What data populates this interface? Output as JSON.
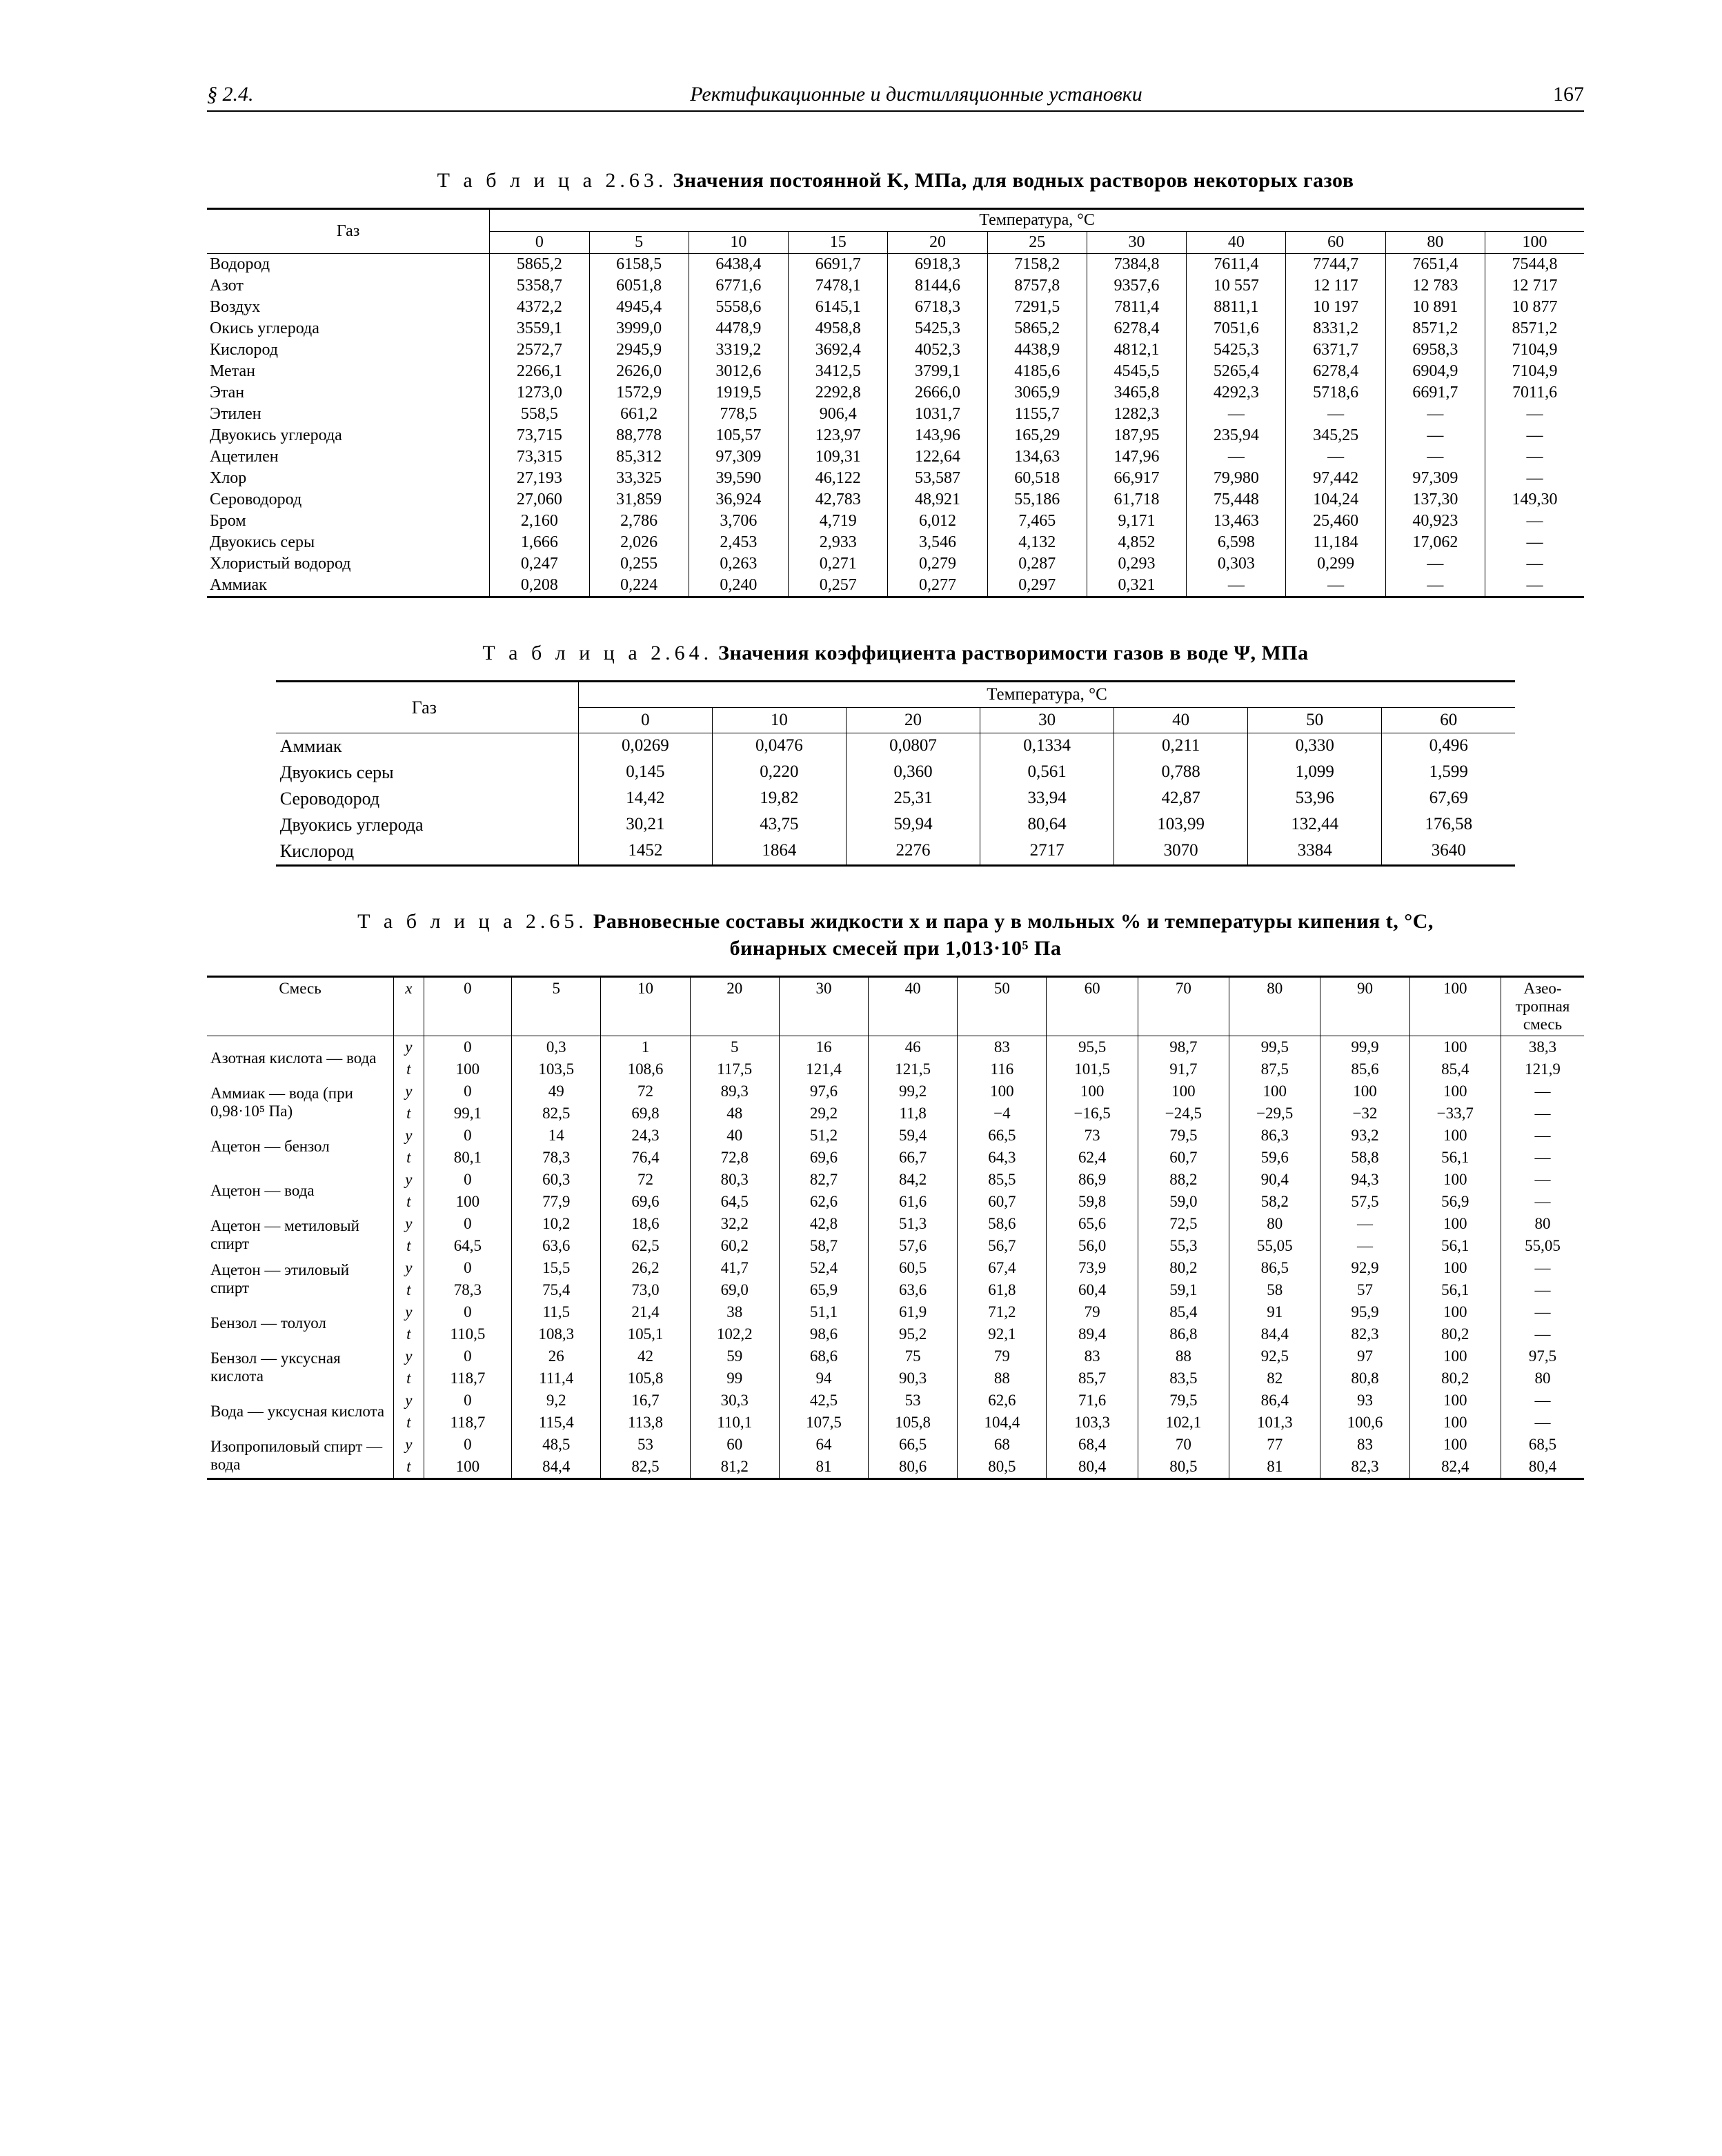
{
  "header": {
    "section": "§ 2.4.",
    "title": "Ректификационные и дистилляционные установки",
    "page": "167"
  },
  "table63": {
    "caption_lead": "Т а б л и ц а 2.63.",
    "caption_rest": " Значения постоянной K, МПа, для водных растворов некоторых газов",
    "rowheader": "Газ",
    "group_header": "Температура, °C",
    "temps": [
      "0",
      "5",
      "10",
      "15",
      "20",
      "25",
      "30",
      "40",
      "60",
      "80",
      "100"
    ],
    "rows": [
      {
        "name": "Водород",
        "v": [
          "5865,2",
          "6158,5",
          "6438,4",
          "6691,7",
          "6918,3",
          "7158,2",
          "7384,8",
          "7611,4",
          "7744,7",
          "7651,4",
          "7544,8"
        ]
      },
      {
        "name": "Азот",
        "v": [
          "5358,7",
          "6051,8",
          "6771,6",
          "7478,1",
          "8144,6",
          "8757,8",
          "9357,6",
          "10 557",
          "12 117",
          "12 783",
          "12 717"
        ]
      },
      {
        "name": "Воздух",
        "v": [
          "4372,2",
          "4945,4",
          "5558,6",
          "6145,1",
          "6718,3",
          "7291,5",
          "7811,4",
          "8811,1",
          "10 197",
          "10 891",
          "10 877"
        ]
      },
      {
        "name": "Окись углерода",
        "v": [
          "3559,1",
          "3999,0",
          "4478,9",
          "4958,8",
          "5425,3",
          "5865,2",
          "6278,4",
          "7051,6",
          "8331,2",
          "8571,2",
          "8571,2"
        ]
      },
      {
        "name": "Кислород",
        "v": [
          "2572,7",
          "2945,9",
          "3319,2",
          "3692,4",
          "4052,3",
          "4438,9",
          "4812,1",
          "5425,3",
          "6371,7",
          "6958,3",
          "7104,9"
        ]
      },
      {
        "name": "Метан",
        "v": [
          "2266,1",
          "2626,0",
          "3012,6",
          "3412,5",
          "3799,1",
          "4185,6",
          "4545,5",
          "5265,4",
          "6278,4",
          "6904,9",
          "7104,9"
        ]
      },
      {
        "name": "Этан",
        "v": [
          "1273,0",
          "1572,9",
          "1919,5",
          "2292,8",
          "2666,0",
          "3065,9",
          "3465,8",
          "4292,3",
          "5718,6",
          "6691,7",
          "7011,6"
        ]
      },
      {
        "name": "Этилен",
        "v": [
          "558,5",
          "661,2",
          "778,5",
          "906,4",
          "1031,7",
          "1155,7",
          "1282,3",
          "—",
          "—",
          "—",
          "—"
        ]
      },
      {
        "name": "Двуокись углерода",
        "v": [
          "73,715",
          "88,778",
          "105,57",
          "123,97",
          "143,96",
          "165,29",
          "187,95",
          "235,94",
          "345,25",
          "—",
          "—"
        ]
      },
      {
        "name": "Ацетилен",
        "v": [
          "73,315",
          "85,312",
          "97,309",
          "109,31",
          "122,64",
          "134,63",
          "147,96",
          "—",
          "—",
          "—",
          "—"
        ]
      },
      {
        "name": "Хлор",
        "v": [
          "27,193",
          "33,325",
          "39,590",
          "46,122",
          "53,587",
          "60,518",
          "66,917",
          "79,980",
          "97,442",
          "97,309",
          "—"
        ]
      },
      {
        "name": "Сероводород",
        "v": [
          "27,060",
          "31,859",
          "36,924",
          "42,783",
          "48,921",
          "55,186",
          "61,718",
          "75,448",
          "104,24",
          "137,30",
          "149,30"
        ]
      },
      {
        "name": "Бром",
        "v": [
          "2,160",
          "2,786",
          "3,706",
          "4,719",
          "6,012",
          "7,465",
          "9,171",
          "13,463",
          "25,460",
          "40,923",
          "—"
        ]
      },
      {
        "name": "Двуокись серы",
        "v": [
          "1,666",
          "2,026",
          "2,453",
          "2,933",
          "3,546",
          "4,132",
          "4,852",
          "6,598",
          "11,184",
          "17,062",
          "—"
        ]
      },
      {
        "name": "Хлористый водород",
        "v": [
          "0,247",
          "0,255",
          "0,263",
          "0,271",
          "0,279",
          "0,287",
          "0,293",
          "0,303",
          "0,299",
          "—",
          "—"
        ]
      },
      {
        "name": "Аммиак",
        "v": [
          "0,208",
          "0,224",
          "0,240",
          "0,257",
          "0,277",
          "0,297",
          "0,321",
          "—",
          "—",
          "—",
          "—"
        ]
      }
    ]
  },
  "table64": {
    "caption_lead": "Т а б л и ц а 2.64.",
    "caption_rest": " Значения коэффициента растворимости газов в воде Ψ, МПа",
    "rowheader": "Газ",
    "group_header": "Температура, °C",
    "temps": [
      "0",
      "10",
      "20",
      "30",
      "40",
      "50",
      "60"
    ],
    "rows": [
      {
        "name": "Аммиак",
        "v": [
          "0,0269",
          "0,0476",
          "0,0807",
          "0,1334",
          "0,211",
          "0,330",
          "0,496"
        ]
      },
      {
        "name": "Двуокись серы",
        "v": [
          "0,145",
          "0,220",
          "0,360",
          "0,561",
          "0,788",
          "1,099",
          "1,599"
        ]
      },
      {
        "name": "Сероводород",
        "v": [
          "14,42",
          "19,82",
          "25,31",
          "33,94",
          "42,87",
          "53,96",
          "67,69"
        ]
      },
      {
        "name": "Двуокись углерода",
        "v": [
          "30,21",
          "43,75",
          "59,94",
          "80,64",
          "103,99",
          "132,44",
          "176,58"
        ]
      },
      {
        "name": "Кислород",
        "v": [
          "1452",
          "1864",
          "2276",
          "2717",
          "3070",
          "3384",
          "3640"
        ]
      }
    ]
  },
  "table65": {
    "caption_lead": "Т а б л и ц а 2.65.",
    "caption_rest": " Равновесные составы жидкости x и пара y в мольных % и температуры кипения t, °C, бинарных смесей при 1,013·10⁵ Па",
    "rowheader": "Смесь",
    "xcol": "x",
    "xvals": [
      "0",
      "5",
      "10",
      "20",
      "30",
      "40",
      "50",
      "60",
      "70",
      "80",
      "90",
      "100"
    ],
    "azeo": "Азео-тропная смесь",
    "rows": [
      {
        "name": "Азотная кислота — вода",
        "y": [
          "0",
          "0,3",
          "1",
          "5",
          "16",
          "46",
          "83",
          "95,5",
          "98,7",
          "99,5",
          "99,9",
          "100",
          "38,3"
        ],
        "t": [
          "100",
          "103,5",
          "108,6",
          "117,5",
          "121,4",
          "121,5",
          "116",
          "101,5",
          "91,7",
          "87,5",
          "85,6",
          "85,4",
          "121,9"
        ]
      },
      {
        "name": "Аммиак — вода (при 0,98·10⁵ Па)",
        "y": [
          "0",
          "49",
          "72",
          "89,3",
          "97,6",
          "99,2",
          "100",
          "100",
          "100",
          "100",
          "100",
          "100",
          "—"
        ],
        "t": [
          "99,1",
          "82,5",
          "69,8",
          "48",
          "29,2",
          "11,8",
          "−4",
          "−16,5",
          "−24,5",
          "−29,5",
          "−32",
          "−33,7",
          "—"
        ]
      },
      {
        "name": "Ацетон — бензол",
        "y": [
          "0",
          "14",
          "24,3",
          "40",
          "51,2",
          "59,4",
          "66,5",
          "73",
          "79,5",
          "86,3",
          "93,2",
          "100",
          "—"
        ],
        "t": [
          "80,1",
          "78,3",
          "76,4",
          "72,8",
          "69,6",
          "66,7",
          "64,3",
          "62,4",
          "60,7",
          "59,6",
          "58,8",
          "56,1",
          "—"
        ]
      },
      {
        "name": "Ацетон — вода",
        "y": [
          "0",
          "60,3",
          "72",
          "80,3",
          "82,7",
          "84,2",
          "85,5",
          "86,9",
          "88,2",
          "90,4",
          "94,3",
          "100",
          "—"
        ],
        "t": [
          "100",
          "77,9",
          "69,6",
          "64,5",
          "62,6",
          "61,6",
          "60,7",
          "59,8",
          "59,0",
          "58,2",
          "57,5",
          "56,9",
          "—"
        ]
      },
      {
        "name": "Ацетон — метиловый спирт",
        "y": [
          "0",
          "10,2",
          "18,6",
          "32,2",
          "42,8",
          "51,3",
          "58,6",
          "65,6",
          "72,5",
          "80",
          "—",
          "100",
          "80"
        ],
        "t": [
          "64,5",
          "63,6",
          "62,5",
          "60,2",
          "58,7",
          "57,6",
          "56,7",
          "56,0",
          "55,3",
          "55,05",
          "—",
          "56,1",
          "55,05"
        ]
      },
      {
        "name": "Ацетон — этиловый спирт",
        "y": [
          "0",
          "15,5",
          "26,2",
          "41,7",
          "52,4",
          "60,5",
          "67,4",
          "73,9",
          "80,2",
          "86,5",
          "92,9",
          "100",
          "—"
        ],
        "t": [
          "78,3",
          "75,4",
          "73,0",
          "69,0",
          "65,9",
          "63,6",
          "61,8",
          "60,4",
          "59,1",
          "58",
          "57",
          "56,1",
          "—"
        ]
      },
      {
        "name": "Бензол — толуол",
        "y": [
          "0",
          "11,5",
          "21,4",
          "38",
          "51,1",
          "61,9",
          "71,2",
          "79",
          "85,4",
          "91",
          "95,9",
          "100",
          "—"
        ],
        "t": [
          "110,5",
          "108,3",
          "105,1",
          "102,2",
          "98,6",
          "95,2",
          "92,1",
          "89,4",
          "86,8",
          "84,4",
          "82,3",
          "80,2",
          "—"
        ]
      },
      {
        "name": "Бензол — уксусная кислота",
        "y": [
          "0",
          "26",
          "42",
          "59",
          "68,6",
          "75",
          "79",
          "83",
          "88",
          "92,5",
          "97",
          "100",
          "97,5"
        ],
        "t": [
          "118,7",
          "111,4",
          "105,8",
          "99",
          "94",
          "90,3",
          "88",
          "85,7",
          "83,5",
          "82",
          "80,8",
          "80,2",
          "80"
        ]
      },
      {
        "name": "Вода — уксусная кислота",
        "y": [
          "0",
          "9,2",
          "16,7",
          "30,3",
          "42,5",
          "53",
          "62,6",
          "71,6",
          "79,5",
          "86,4",
          "93",
          "100",
          "—"
        ],
        "t": [
          "118,7",
          "115,4",
          "113,8",
          "110,1",
          "107,5",
          "105,8",
          "104,4",
          "103,3",
          "102,1",
          "101,3",
          "100,6",
          "100",
          "—"
        ]
      },
      {
        "name": "Изопропиловый спирт — вода",
        "y": [
          "0",
          "48,5",
          "53",
          "60",
          "64",
          "66,5",
          "68",
          "68,4",
          "70",
          "77",
          "83",
          "100",
          "68,5"
        ],
        "t": [
          "100",
          "84,4",
          "82,5",
          "81,2",
          "81",
          "80,6",
          "80,5",
          "80,4",
          "80,5",
          "81",
          "82,3",
          "82,4",
          "80,4"
        ]
      }
    ]
  }
}
